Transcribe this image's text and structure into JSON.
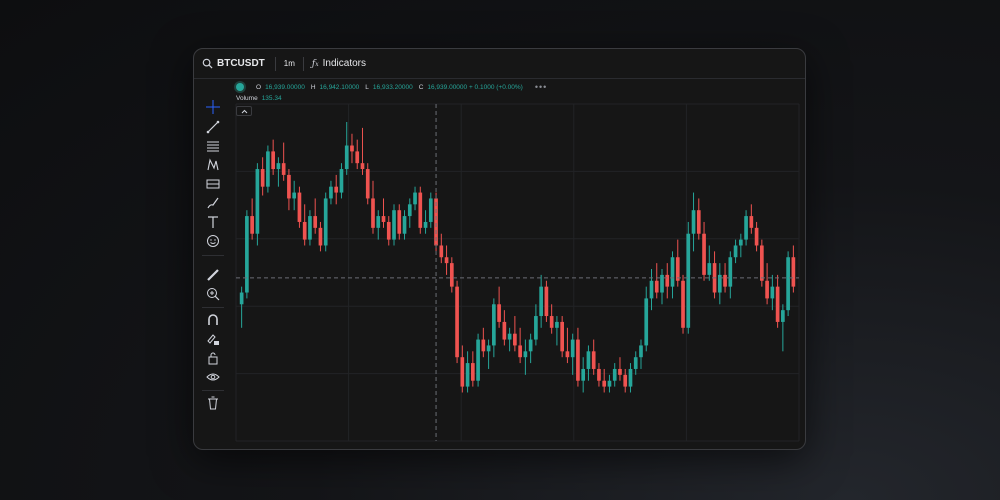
{
  "topbar": {
    "symbol": "BTCUSDT",
    "interval": "1m",
    "indicators_label": "Indicators"
  },
  "legend": {
    "open_label": "O",
    "open_value": "16,939.00000",
    "high_label": "H",
    "high_value": "16,942.10000",
    "low_label": "L",
    "low_value": "16,933.20000",
    "close_label": "C",
    "close_value": "16,939.00000 + 0.1000 (+0.00%)",
    "more": "•••"
  },
  "volume": {
    "label": "Volume",
    "value": "135.34"
  },
  "toolbar": {
    "tools": [
      "crosshair-icon",
      "trend-line-icon",
      "fib-icon",
      "pattern-icon",
      "projection-icon",
      "brush-icon",
      "text-icon",
      "emoji-icon",
      "ruler-icon",
      "zoom-in-icon",
      "magnet-icon",
      "lock-drawing-icon",
      "lock-icon",
      "eye-icon",
      "trash-icon"
    ]
  },
  "colors": {
    "up": "#26a69a",
    "down": "#ef5350",
    "background": "#161616",
    "grid": "#222326",
    "crosshair": "#6b6e75"
  },
  "chart_data": {
    "type": "candlestick",
    "crosshair": {
      "x_index": 37,
      "y_value": 47
    },
    "ylim": [
      0,
      100
    ],
    "candles": [
      {
        "o": 38,
        "h": 44,
        "l": 30,
        "c": 42
      },
      {
        "o": 42,
        "h": 70,
        "l": 40,
        "c": 68
      },
      {
        "o": 68,
        "h": 74,
        "l": 60,
        "c": 62
      },
      {
        "o": 62,
        "h": 86,
        "l": 58,
        "c": 84
      },
      {
        "o": 84,
        "h": 88,
        "l": 75,
        "c": 78
      },
      {
        "o": 78,
        "h": 92,
        "l": 76,
        "c": 90
      },
      {
        "o": 90,
        "h": 94,
        "l": 82,
        "c": 84
      },
      {
        "o": 84,
        "h": 88,
        "l": 78,
        "c": 86
      },
      {
        "o": 86,
        "h": 93,
        "l": 80,
        "c": 82
      },
      {
        "o": 82,
        "h": 84,
        "l": 70,
        "c": 74
      },
      {
        "o": 74,
        "h": 80,
        "l": 70,
        "c": 76
      },
      {
        "o": 76,
        "h": 78,
        "l": 64,
        "c": 66
      },
      {
        "o": 66,
        "h": 72,
        "l": 58,
        "c": 60
      },
      {
        "o": 60,
        "h": 70,
        "l": 58,
        "c": 68
      },
      {
        "o": 68,
        "h": 74,
        "l": 62,
        "c": 64
      },
      {
        "o": 64,
        "h": 66,
        "l": 56,
        "c": 58
      },
      {
        "o": 58,
        "h": 76,
        "l": 56,
        "c": 74
      },
      {
        "o": 74,
        "h": 80,
        "l": 72,
        "c": 78
      },
      {
        "o": 78,
        "h": 82,
        "l": 72,
        "c": 76
      },
      {
        "o": 76,
        "h": 86,
        "l": 74,
        "c": 84
      },
      {
        "o": 84,
        "h": 100,
        "l": 82,
        "c": 92
      },
      {
        "o": 92,
        "h": 96,
        "l": 86,
        "c": 90
      },
      {
        "o": 90,
        "h": 94,
        "l": 84,
        "c": 86
      },
      {
        "o": 86,
        "h": 98,
        "l": 82,
        "c": 84
      },
      {
        "o": 84,
        "h": 86,
        "l": 72,
        "c": 74
      },
      {
        "o": 74,
        "h": 80,
        "l": 62,
        "c": 64
      },
      {
        "o": 64,
        "h": 70,
        "l": 60,
        "c": 68
      },
      {
        "o": 68,
        "h": 74,
        "l": 64,
        "c": 66
      },
      {
        "o": 66,
        "h": 68,
        "l": 58,
        "c": 60
      },
      {
        "o": 60,
        "h": 72,
        "l": 58,
        "c": 70
      },
      {
        "o": 70,
        "h": 72,
        "l": 60,
        "c": 62
      },
      {
        "o": 62,
        "h": 70,
        "l": 60,
        "c": 68
      },
      {
        "o": 68,
        "h": 74,
        "l": 64,
        "c": 72
      },
      {
        "o": 72,
        "h": 78,
        "l": 70,
        "c": 76
      },
      {
        "o": 76,
        "h": 78,
        "l": 62,
        "c": 64
      },
      {
        "o": 64,
        "h": 70,
        "l": 62,
        "c": 66
      },
      {
        "o": 66,
        "h": 76,
        "l": 64,
        "c": 74
      },
      {
        "o": 74,
        "h": 76,
        "l": 56,
        "c": 58
      },
      {
        "o": 58,
        "h": 62,
        "l": 52,
        "c": 54
      },
      {
        "o": 54,
        "h": 58,
        "l": 48,
        "c": 52
      },
      {
        "o": 52,
        "h": 54,
        "l": 42,
        "c": 44
      },
      {
        "o": 44,
        "h": 46,
        "l": 18,
        "c": 20
      },
      {
        "o": 20,
        "h": 24,
        "l": 8,
        "c": 10
      },
      {
        "o": 10,
        "h": 22,
        "l": 8,
        "c": 18
      },
      {
        "o": 18,
        "h": 22,
        "l": 10,
        "c": 12
      },
      {
        "o": 12,
        "h": 28,
        "l": 10,
        "c": 26
      },
      {
        "o": 26,
        "h": 30,
        "l": 20,
        "c": 22
      },
      {
        "o": 22,
        "h": 26,
        "l": 16,
        "c": 24
      },
      {
        "o": 24,
        "h": 40,
        "l": 20,
        "c": 38
      },
      {
        "o": 38,
        "h": 44,
        "l": 30,
        "c": 32
      },
      {
        "o": 32,
        "h": 36,
        "l": 24,
        "c": 26
      },
      {
        "o": 26,
        "h": 30,
        "l": 22,
        "c": 28
      },
      {
        "o": 28,
        "h": 34,
        "l": 22,
        "c": 24
      },
      {
        "o": 24,
        "h": 30,
        "l": 18,
        "c": 20
      },
      {
        "o": 20,
        "h": 26,
        "l": 14,
        "c": 22
      },
      {
        "o": 22,
        "h": 28,
        "l": 18,
        "c": 26
      },
      {
        "o": 26,
        "h": 38,
        "l": 24,
        "c": 34
      },
      {
        "o": 34,
        "h": 48,
        "l": 30,
        "c": 44
      },
      {
        "o": 44,
        "h": 46,
        "l": 32,
        "c": 34
      },
      {
        "o": 34,
        "h": 38,
        "l": 28,
        "c": 30
      },
      {
        "o": 30,
        "h": 34,
        "l": 24,
        "c": 32
      },
      {
        "o": 32,
        "h": 34,
        "l": 20,
        "c": 22
      },
      {
        "o": 22,
        "h": 30,
        "l": 18,
        "c": 20
      },
      {
        "o": 20,
        "h": 28,
        "l": 14,
        "c": 26
      },
      {
        "o": 26,
        "h": 30,
        "l": 10,
        "c": 12
      },
      {
        "o": 12,
        "h": 20,
        "l": 8,
        "c": 16
      },
      {
        "o": 16,
        "h": 24,
        "l": 12,
        "c": 22
      },
      {
        "o": 22,
        "h": 26,
        "l": 14,
        "c": 16
      },
      {
        "o": 16,
        "h": 18,
        "l": 10,
        "c": 12
      },
      {
        "o": 12,
        "h": 16,
        "l": 8,
        "c": 10
      },
      {
        "o": 10,
        "h": 14,
        "l": 8,
        "c": 12
      },
      {
        "o": 12,
        "h": 18,
        "l": 10,
        "c": 16
      },
      {
        "o": 16,
        "h": 20,
        "l": 12,
        "c": 14
      },
      {
        "o": 14,
        "h": 16,
        "l": 8,
        "c": 10
      },
      {
        "o": 10,
        "h": 18,
        "l": 8,
        "c": 16
      },
      {
        "o": 16,
        "h": 22,
        "l": 14,
        "c": 20
      },
      {
        "o": 20,
        "h": 26,
        "l": 16,
        "c": 24
      },
      {
        "o": 24,
        "h": 44,
        "l": 22,
        "c": 40
      },
      {
        "o": 40,
        "h": 50,
        "l": 36,
        "c": 46
      },
      {
        "o": 46,
        "h": 52,
        "l": 40,
        "c": 42
      },
      {
        "o": 42,
        "h": 50,
        "l": 38,
        "c": 48
      },
      {
        "o": 48,
        "h": 52,
        "l": 40,
        "c": 44
      },
      {
        "o": 44,
        "h": 56,
        "l": 40,
        "c": 54
      },
      {
        "o": 54,
        "h": 60,
        "l": 44,
        "c": 46
      },
      {
        "o": 46,
        "h": 48,
        "l": 28,
        "c": 30
      },
      {
        "o": 30,
        "h": 66,
        "l": 28,
        "c": 62
      },
      {
        "o": 62,
        "h": 76,
        "l": 56,
        "c": 70
      },
      {
        "o": 70,
        "h": 74,
        "l": 60,
        "c": 62
      },
      {
        "o": 62,
        "h": 66,
        "l": 46,
        "c": 48
      },
      {
        "o": 48,
        "h": 58,
        "l": 46,
        "c": 52
      },
      {
        "o": 52,
        "h": 56,
        "l": 40,
        "c": 42
      },
      {
        "o": 42,
        "h": 52,
        "l": 38,
        "c": 48
      },
      {
        "o": 48,
        "h": 52,
        "l": 42,
        "c": 44
      },
      {
        "o": 44,
        "h": 56,
        "l": 40,
        "c": 54
      },
      {
        "o": 54,
        "h": 60,
        "l": 52,
        "c": 58
      },
      {
        "o": 58,
        "h": 62,
        "l": 54,
        "c": 60
      },
      {
        "o": 60,
        "h": 70,
        "l": 58,
        "c": 68
      },
      {
        "o": 68,
        "h": 72,
        "l": 62,
        "c": 64
      },
      {
        "o": 64,
        "h": 66,
        "l": 56,
        "c": 58
      },
      {
        "o": 58,
        "h": 60,
        "l": 44,
        "c": 46
      },
      {
        "o": 46,
        "h": 52,
        "l": 38,
        "c": 40
      },
      {
        "o": 40,
        "h": 48,
        "l": 36,
        "c": 44
      },
      {
        "o": 44,
        "h": 48,
        "l": 30,
        "c": 32
      },
      {
        "o": 32,
        "h": 38,
        "l": 22,
        "c": 36
      },
      {
        "o": 36,
        "h": 56,
        "l": 34,
        "c": 54
      },
      {
        "o": 54,
        "h": 58,
        "l": 42,
        "c": 44
      }
    ]
  }
}
